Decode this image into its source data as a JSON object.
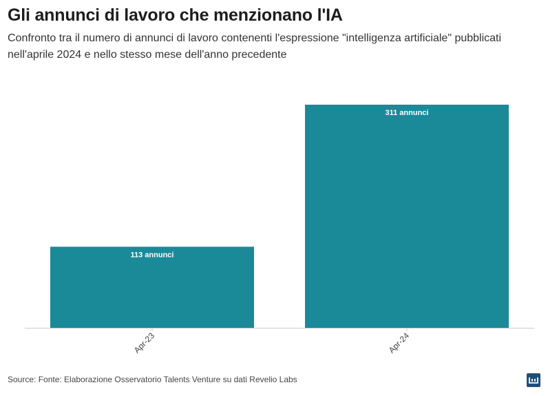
{
  "header": {
    "title": "Gli annunci di lavoro che menzionano l'IA",
    "subtitle": "Confronto tra il numero di annunci di lavoro contenenti l'espressione \"intelligenza artificiale\" pubblicati nell'aprile 2024 e nello stesso mese dell'anno precedente"
  },
  "footer": {
    "source": "Source: Fonte: Elaborazione Osservatorio Talents Venture su dati Revelio Labs",
    "logo_icon": "datawrapper-logo-icon"
  },
  "colors": {
    "bar": "#1a8a99",
    "axis": "#cccccc",
    "label_text": "#ffffff",
    "tick_text": "#444444"
  },
  "chart_data": {
    "type": "bar",
    "categories": [
      "Apr-23",
      "Apr-24"
    ],
    "values": [
      113,
      311
    ],
    "value_labels": [
      "113 annunci",
      "311 annunci"
    ],
    "ylim": [
      0,
      311
    ],
    "grid": false,
    "legend": "none"
  }
}
